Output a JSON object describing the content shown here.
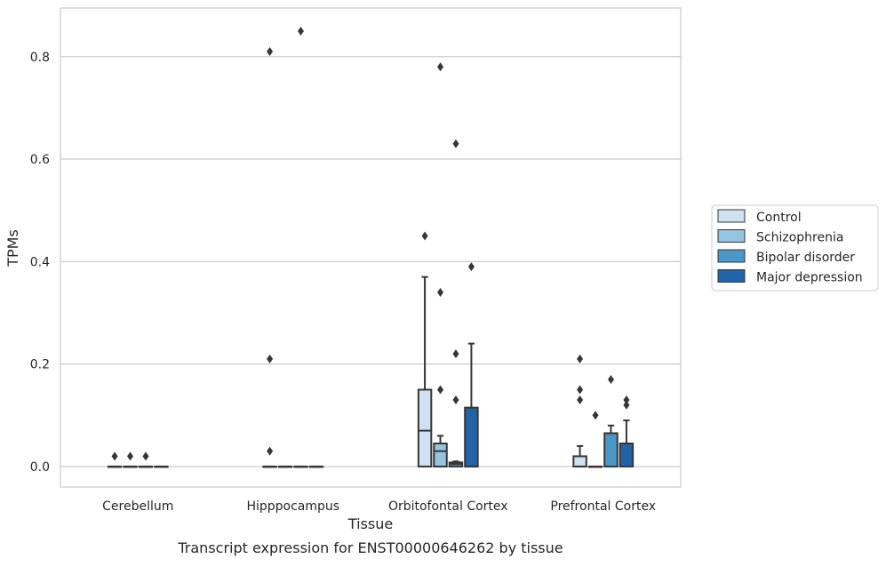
{
  "chart_data": {
    "type": "box",
    "caption": "Transcript expression for ENST00000646262 by tissue",
    "xlabel": "Tissue",
    "ylabel": "TPMs",
    "ylim": [
      -0.04,
      0.895
    ],
    "yticks": [
      "0.0",
      "0.2",
      "0.4",
      "0.6",
      "0.8"
    ],
    "grid": "horizontal",
    "legend_position": "right",
    "categories": [
      "Cerebellum",
      "Hipppocampus",
      "Orbitofontal Cortex",
      "Prefrontal Cortex"
    ],
    "series": [
      {
        "name": "Control",
        "color": "#d0e1f2",
        "boxes": [
          {
            "q1": 0,
            "median": 0,
            "q3": 0,
            "whislo": 0,
            "whishi": 0,
            "fliers": [
              0.02
            ]
          },
          {
            "q1": 0,
            "median": 0,
            "q3": 0,
            "whislo": 0,
            "whishi": 0,
            "fliers": [
              0.81,
              0.21,
              0.03
            ]
          },
          {
            "q1": 0,
            "median": 0.07,
            "q3": 0.15,
            "whislo": 0,
            "whishi": 0.37,
            "fliers": [
              0.45
            ]
          },
          {
            "q1": 0,
            "median": 0,
            "q3": 0.02,
            "whislo": 0,
            "whishi": 0.04,
            "fliers": [
              0.21,
              0.15,
              0.13
            ]
          }
        ]
      },
      {
        "name": "Schizophrenia",
        "color": "#94c4df",
        "boxes": [
          {
            "q1": 0,
            "median": 0,
            "q3": 0,
            "whislo": 0,
            "whishi": 0,
            "fliers": [
              0.02
            ]
          },
          {
            "q1": 0,
            "median": 0,
            "q3": 0,
            "whislo": 0,
            "whishi": 0,
            "fliers": []
          },
          {
            "q1": 0,
            "median": 0.03,
            "q3": 0.045,
            "whislo": 0,
            "whishi": 0.06,
            "fliers": [
              0.78,
              0.34,
              0.15
            ]
          },
          {
            "q1": 0,
            "median": 0,
            "q3": 0,
            "whislo": 0,
            "whishi": 0,
            "fliers": [
              0.1
            ]
          }
        ]
      },
      {
        "name": "Bipolar disorder",
        "color": "#4a98c9",
        "boxes": [
          {
            "q1": 0,
            "median": 0,
            "q3": 0,
            "whislo": 0,
            "whishi": 0,
            "fliers": [
              0.02
            ]
          },
          {
            "q1": 0,
            "median": 0,
            "q3": 0,
            "whislo": 0,
            "whishi": 0,
            "fliers": [
              0.85
            ]
          },
          {
            "q1": 0,
            "median": 0.005,
            "q3": 0.008,
            "whislo": 0,
            "whishi": 0.01,
            "fliers": [
              0.63,
              0.22,
              0.13
            ]
          },
          {
            "q1": 0,
            "median": 0.065,
            "q3": 0.065,
            "whislo": 0,
            "whishi": 0.08,
            "fliers": [
              0.17
            ]
          }
        ]
      },
      {
        "name": "Major depression",
        "color": "#2264a8",
        "boxes": [
          {
            "q1": 0,
            "median": 0,
            "q3": 0,
            "whislo": 0,
            "whishi": 0,
            "fliers": []
          },
          {
            "q1": 0,
            "median": 0,
            "q3": 0,
            "whislo": 0,
            "whishi": 0,
            "fliers": []
          },
          {
            "q1": 0,
            "median": 0,
            "q3": 0.115,
            "whislo": 0,
            "whishi": 0.24,
            "fliers": [
              0.39
            ]
          },
          {
            "q1": 0,
            "median": 0.045,
            "q3": 0.045,
            "whislo": 0,
            "whishi": 0.09,
            "fliers": [
              0.13,
              0.12
            ]
          }
        ]
      }
    ]
  }
}
